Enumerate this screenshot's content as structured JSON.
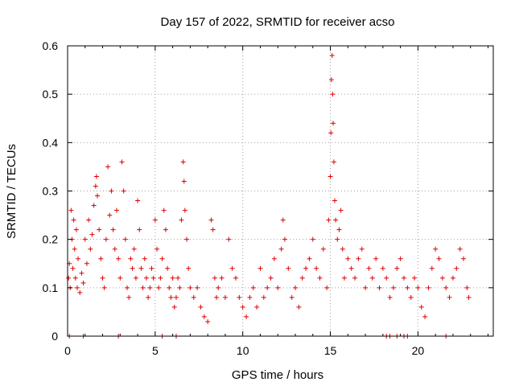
{
  "chart_data": {
    "type": "scatter",
    "title": "Day 157 of 2022, SRMTID for receiver acso",
    "xlabel": "GPS time / hours",
    "ylabel": "SRMTID / TECUs",
    "xlim": [
      0,
      24.3
    ],
    "ylim": [
      0,
      0.6
    ],
    "xticks": [
      0,
      5,
      10,
      15,
      20
    ],
    "xtick_labels": [
      "0",
      "5",
      "10",
      "15",
      "20"
    ],
    "yticks": [
      0,
      0.1,
      0.2,
      0.3,
      0.4,
      0.5,
      0.6
    ],
    "ytick_labels": [
      "0",
      "0.1",
      "0.2",
      "0.3",
      "0.4",
      "0.5",
      "0.6"
    ],
    "grid": true,
    "marker": "plus",
    "color": "#e00000",
    "series": [
      {
        "name": "SRMTID",
        "points": [
          [
            0.05,
            0.12
          ],
          [
            0.1,
            0.15
          ],
          [
            0.15,
            0.1
          ],
          [
            0.2,
            0.26
          ],
          [
            0.25,
            0.2
          ],
          [
            0.3,
            0.14
          ],
          [
            0.35,
            0.24
          ],
          [
            0.4,
            0.18
          ],
          [
            0.45,
            0.12
          ],
          [
            0.5,
            0.22
          ],
          [
            0.55,
            0.1
          ],
          [
            0.6,
            0.16
          ],
          [
            0.7,
            0.09
          ],
          [
            0.8,
            0.13
          ],
          [
            0.9,
            0.11
          ],
          [
            1.0,
            0.2
          ],
          [
            1.1,
            0.15
          ],
          [
            1.2,
            0.24
          ],
          [
            1.3,
            0.18
          ],
          [
            1.4,
            0.21
          ],
          [
            1.5,
            0.27
          ],
          [
            1.6,
            0.31
          ],
          [
            1.65,
            0.33
          ],
          [
            1.7,
            0.29
          ],
          [
            1.8,
            0.22
          ],
          [
            1.9,
            0.16
          ],
          [
            2.0,
            0.12
          ],
          [
            2.1,
            0.1
          ],
          [
            2.2,
            0.2
          ],
          [
            2.3,
            0.35
          ],
          [
            2.4,
            0.25
          ],
          [
            2.5,
            0.3
          ],
          [
            2.6,
            0.22
          ],
          [
            2.7,
            0.18
          ],
          [
            2.8,
            0.26
          ],
          [
            2.9,
            0.16
          ],
          [
            3.0,
            0.12
          ],
          [
            3.1,
            0.36
          ],
          [
            3.2,
            0.3
          ],
          [
            3.3,
            0.2
          ],
          [
            3.4,
            0.1
          ],
          [
            3.5,
            0.08
          ],
          [
            3.6,
            0.16
          ],
          [
            3.7,
            0.14
          ],
          [
            3.8,
            0.18
          ],
          [
            3.9,
            0.12
          ],
          [
            4.0,
            0.28
          ],
          [
            4.1,
            0.22
          ],
          [
            4.2,
            0.14
          ],
          [
            4.3,
            0.1
          ],
          [
            4.4,
            0.16
          ],
          [
            4.5,
            0.12
          ],
          [
            4.6,
            0.08
          ],
          [
            4.7,
            0.1
          ],
          [
            4.8,
            0.14
          ],
          [
            4.9,
            0.12
          ],
          [
            5.0,
            0.24
          ],
          [
            5.1,
            0.18
          ],
          [
            5.2,
            0.1
          ],
          [
            5.3,
            0.12
          ],
          [
            5.4,
            0.16
          ],
          [
            5.5,
            0.26
          ],
          [
            5.6,
            0.22
          ],
          [
            5.7,
            0.14
          ],
          [
            5.8,
            0.1
          ],
          [
            5.9,
            0.08
          ],
          [
            6.0,
            0.12
          ],
          [
            6.1,
            0.06
          ],
          [
            6.2,
            0.08
          ],
          [
            6.3,
            0.12
          ],
          [
            6.4,
            0.1
          ],
          [
            6.5,
            0.24
          ],
          [
            6.6,
            0.36
          ],
          [
            6.65,
            0.32
          ],
          [
            6.7,
            0.26
          ],
          [
            6.8,
            0.2
          ],
          [
            6.9,
            0.14
          ],
          [
            7.0,
            0.1
          ],
          [
            7.2,
            0.08
          ],
          [
            7.4,
            0.1
          ],
          [
            7.6,
            0.06
          ],
          [
            7.8,
            0.04
          ],
          [
            8.0,
            0.03
          ],
          [
            8.2,
            0.24
          ],
          [
            8.3,
            0.22
          ],
          [
            8.4,
            0.12
          ],
          [
            8.5,
            0.08
          ],
          [
            8.6,
            0.1
          ],
          [
            8.8,
            0.12
          ],
          [
            9.0,
            0.08
          ],
          [
            9.2,
            0.2
          ],
          [
            9.4,
            0.14
          ],
          [
            9.6,
            0.12
          ],
          [
            9.8,
            0.08
          ],
          [
            10.0,
            0.06
          ],
          [
            10.2,
            0.04
          ],
          [
            10.4,
            0.08
          ],
          [
            10.6,
            0.1
          ],
          [
            10.8,
            0.06
          ],
          [
            11.0,
            0.14
          ],
          [
            11.2,
            0.08
          ],
          [
            11.4,
            0.1
          ],
          [
            11.6,
            0.12
          ],
          [
            11.8,
            0.16
          ],
          [
            12.0,
            0.1
          ],
          [
            12.2,
            0.18
          ],
          [
            12.3,
            0.24
          ],
          [
            12.4,
            0.2
          ],
          [
            12.6,
            0.14
          ],
          [
            12.8,
            0.08
          ],
          [
            13.0,
            0.1
          ],
          [
            13.2,
            0.06
          ],
          [
            13.4,
            0.12
          ],
          [
            13.6,
            0.14
          ],
          [
            13.8,
            0.16
          ],
          [
            14.0,
            0.2
          ],
          [
            14.2,
            0.14
          ],
          [
            14.4,
            0.12
          ],
          [
            14.6,
            0.18
          ],
          [
            14.8,
            0.1
          ],
          [
            14.9,
            0.24
          ],
          [
            15.0,
            0.33
          ],
          [
            15.03,
            0.42
          ],
          [
            15.06,
            0.53
          ],
          [
            15.1,
            0.58
          ],
          [
            15.13,
            0.5
          ],
          [
            15.16,
            0.44
          ],
          [
            15.2,
            0.36
          ],
          [
            15.25,
            0.28
          ],
          [
            15.3,
            0.24
          ],
          [
            15.4,
            0.2
          ],
          [
            15.5,
            0.22
          ],
          [
            15.6,
            0.26
          ],
          [
            15.7,
            0.18
          ],
          [
            15.8,
            0.12
          ],
          [
            16.0,
            0.16
          ],
          [
            16.2,
            0.14
          ],
          [
            16.4,
            0.12
          ],
          [
            16.6,
            0.16
          ],
          [
            16.8,
            0.18
          ],
          [
            17.0,
            0.1
          ],
          [
            17.2,
            0.14
          ],
          [
            17.4,
            0.12
          ],
          [
            17.6,
            0.16
          ],
          [
            17.8,
            0.1
          ],
          [
            18.0,
            0.14
          ],
          [
            18.2,
            0.12
          ],
          [
            18.4,
            0.08
          ],
          [
            18.6,
            0.1
          ],
          [
            18.8,
            0.14
          ],
          [
            19.0,
            0.16
          ],
          [
            19.2,
            0.12
          ],
          [
            19.4,
            0.1
          ],
          [
            19.6,
            0.08
          ],
          [
            19.8,
            0.12
          ],
          [
            20.0,
            0.1
          ],
          [
            20.2,
            0.06
          ],
          [
            20.4,
            0.04
          ],
          [
            20.6,
            0.1
          ],
          [
            20.8,
            0.14
          ],
          [
            21.0,
            0.18
          ],
          [
            21.2,
            0.16
          ],
          [
            21.4,
            0.12
          ],
          [
            21.6,
            0.1
          ],
          [
            21.8,
            0.08
          ],
          [
            22.0,
            0.12
          ],
          [
            22.2,
            0.14
          ],
          [
            22.4,
            0.18
          ],
          [
            22.6,
            0.16
          ],
          [
            22.8,
            0.1
          ],
          [
            22.9,
            0.08
          ],
          [
            0.1,
            0.0
          ],
          [
            0.9,
            0.0
          ],
          [
            2.9,
            0.0
          ],
          [
            5.4,
            0.0
          ],
          [
            6.2,
            0.0
          ],
          [
            18.2,
            0.0
          ],
          [
            18.4,
            0.0
          ],
          [
            18.8,
            0.0
          ],
          [
            19.2,
            0.0
          ],
          [
            19.4,
            0.0
          ],
          [
            21.6,
            0.0
          ]
        ]
      }
    ]
  }
}
